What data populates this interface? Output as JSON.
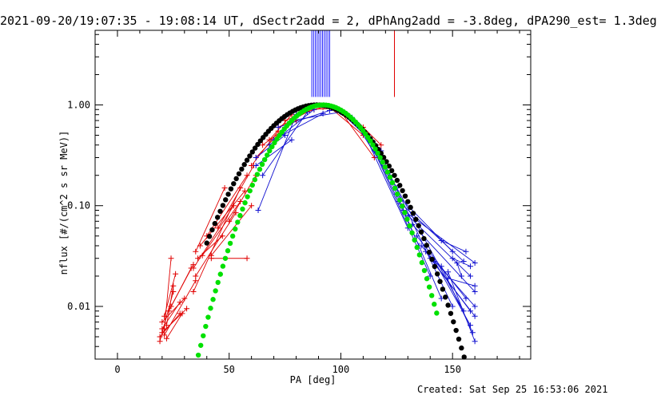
{
  "title": "2021-09-20/19:07:35 - 19:08:14 UT, dSectr2add = 2, dPhAng2add = -3.8deg, dPA290_est=  1.3deg",
  "created": "Created: Sat Sep 25 16:53:06 2021",
  "chart_data": {
    "type": "scatter",
    "xlabel": "PA [deg]",
    "ylabel": "nflux [#/(cm^2 s sr MeV)]",
    "xlim": [
      -10,
      185
    ],
    "ylim": [
      0.003,
      5.5
    ],
    "yscale": "log",
    "xticks": [
      0,
      50,
      100,
      150
    ],
    "xtick_labels": [
      "0",
      "50",
      "100",
      "150"
    ],
    "yticks": [
      0.01,
      0.1,
      1.0
    ],
    "ytick_labels": [
      "0.01",
      "0.10",
      "1.00"
    ],
    "grid": false,
    "colors": {
      "red": "#e00000",
      "blue": "#1010d0",
      "black": "#000000",
      "green": "#00e000"
    },
    "vertical_markers": [
      {
        "color": "#2020ff",
        "x": [
          87.0,
          87.8,
          88.6,
          89.4,
          90.2,
          91.0,
          91.8,
          92.6,
          93.4,
          94.2,
          95.0
        ],
        "y_low": 1.2
      },
      {
        "color": "#e00000",
        "x": [
          124.0
        ],
        "y_low": 1.2
      }
    ],
    "series": [
      {
        "color": "red",
        "marker": "plus",
        "lines": true,
        "points": [
          [
            19,
            0.0045
          ],
          [
            25,
            0.014
          ],
          [
            19,
            0.005
          ],
          [
            28,
            0.0085
          ],
          [
            20,
            0.0055
          ],
          [
            31,
            0.0095
          ],
          [
            21,
            0.006
          ],
          [
            24,
            0.03
          ],
          [
            22,
            0.0065
          ],
          [
            25,
            0.016
          ],
          [
            20,
            0.007
          ],
          [
            30,
            0.012
          ],
          [
            22,
            0.0048
          ],
          [
            29,
            0.0085
          ],
          [
            21,
            0.008
          ],
          [
            26,
            0.021
          ],
          [
            20,
            0.006
          ],
          [
            28,
            0.011
          ],
          [
            23,
            0.009
          ],
          [
            33,
            0.024
          ],
          [
            21,
            0.0052
          ],
          [
            35,
            0.018
          ],
          [
            24,
            0.01
          ],
          [
            34,
            0.026
          ],
          [
            35,
            0.035
          ],
          [
            48,
            0.15
          ],
          [
            34,
            0.024
          ],
          [
            52,
            0.1
          ],
          [
            35,
            0.02
          ],
          [
            53,
            0.085
          ],
          [
            36,
            0.03
          ],
          [
            47,
            0.05
          ],
          [
            34,
            0.014
          ],
          [
            55,
            0.15
          ],
          [
            37,
            0.04
          ],
          [
            57,
            0.14
          ],
          [
            38,
            0.032
          ],
          [
            55,
            0.11
          ],
          [
            40,
            0.05
          ],
          [
            58,
            0.2
          ],
          [
            45,
            0.06
          ],
          [
            61,
            0.25
          ],
          [
            42,
            0.03
          ],
          [
            58,
            0.03
          ],
          [
            50,
            0.07
          ],
          [
            62,
            0.2
          ],
          [
            42,
            0.032
          ],
          [
            60,
            0.1
          ],
          [
            60,
            0.25
          ],
          [
            72,
            0.55
          ],
          [
            62,
            0.3
          ],
          [
            75,
            0.6
          ],
          [
            65,
            0.4
          ],
          [
            80,
            0.7
          ],
          [
            68,
            0.45
          ],
          [
            78,
            0.8
          ],
          [
            72,
            0.6
          ],
          [
            85,
            0.85
          ],
          [
            75,
            0.7
          ],
          [
            88,
            0.9
          ],
          [
            80,
            0.8
          ],
          [
            92,
            0.95
          ],
          [
            85,
            0.9
          ],
          [
            95,
            0.92
          ],
          [
            95,
            0.95
          ],
          [
            110,
            0.5
          ],
          [
            100,
            0.85
          ],
          [
            115,
            0.3
          ],
          [
            105,
            0.7
          ],
          [
            118,
            0.35
          ],
          [
            110,
            0.6
          ],
          [
            118,
            0.4
          ]
        ]
      },
      {
        "color": "blue",
        "marker": "plus",
        "lines": true,
        "points": [
          [
            62,
            0.3
          ],
          [
            75,
            0.5
          ],
          [
            62,
            0.25
          ],
          [
            78,
            0.45
          ],
          [
            63,
            0.09
          ],
          [
            80,
            0.8
          ],
          [
            65,
            0.2
          ],
          [
            85,
            0.85
          ],
          [
            68,
            0.4
          ],
          [
            88,
            0.9
          ],
          [
            70,
            0.45
          ],
          [
            92,
            0.82
          ],
          [
            72,
            0.6
          ],
          [
            95,
            0.88
          ],
          [
            78,
            0.7
          ],
          [
            100,
            0.85
          ],
          [
            100,
            0.85
          ],
          [
            118,
            0.35
          ],
          [
            105,
            0.75
          ],
          [
            125,
            0.15
          ],
          [
            110,
            0.55
          ],
          [
            130,
            0.06
          ],
          [
            112,
            0.5
          ],
          [
            135,
            0.04
          ],
          [
            115,
            0.35
          ],
          [
            140,
            0.02
          ],
          [
            118,
            0.3
          ],
          [
            145,
            0.012
          ],
          [
            120,
            0.25
          ],
          [
            150,
            0.01
          ],
          [
            122,
            0.2
          ],
          [
            155,
            0.009
          ],
          [
            125,
            0.13
          ],
          [
            150,
            0.035
          ],
          [
            126,
            0.11
          ],
          [
            155,
            0.028
          ],
          [
            128,
            0.09
          ],
          [
            160,
            0.027
          ],
          [
            130,
            0.08
          ],
          [
            158,
            0.02
          ],
          [
            132,
            0.065
          ],
          [
            160,
            0.014
          ],
          [
            134,
            0.05
          ],
          [
            156,
            0.012
          ],
          [
            136,
            0.04
          ],
          [
            160,
            0.01
          ],
          [
            138,
            0.035
          ],
          [
            158,
            0.009
          ],
          [
            140,
            0.03
          ],
          [
            160,
            0.008
          ],
          [
            142,
            0.028
          ],
          [
            158,
            0.0065
          ],
          [
            145,
            0.025
          ],
          [
            159,
            0.0055
          ],
          [
            148,
            0.022
          ],
          [
            160,
            0.0045
          ],
          [
            145,
            0.045
          ],
          [
            156,
            0.035
          ],
          [
            150,
            0.03
          ],
          [
            158,
            0.025
          ],
          [
            152,
            0.027
          ],
          [
            154,
            0.02
          ],
          [
            148,
            0.019
          ],
          [
            160,
            0.016
          ]
        ]
      },
      {
        "color": "black",
        "marker": "dot",
        "lines": false,
        "curve": {
          "amplitude": 1.0,
          "center": 89,
          "sigma": 19.5,
          "x_from": 40,
          "x_to": 160,
          "step": 1.2
        }
      },
      {
        "color": "green",
        "marker": "dot",
        "lines": false,
        "curve": {
          "amplitude": 1.0,
          "center": 92,
          "sigma": 16.5,
          "x_from": 34,
          "x_to": 143,
          "step": 1.1
        }
      }
    ]
  }
}
